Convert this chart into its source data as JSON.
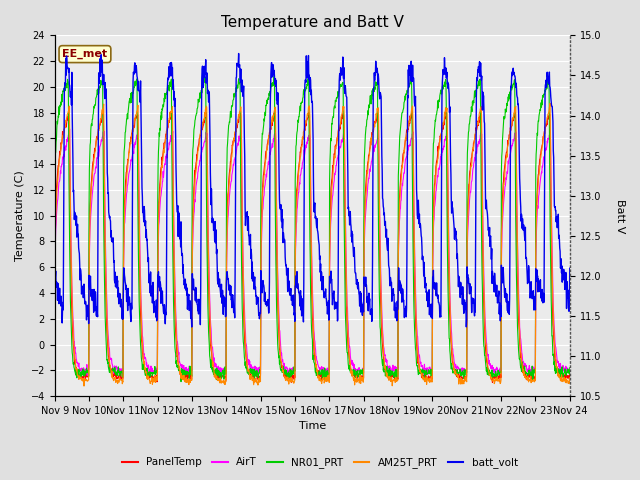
{
  "title": "Temperature and Batt V",
  "ylabel_left": "Temperature (C)",
  "ylabel_right": "Batt V",
  "xlabel": "Time",
  "annotation_text": "EE_met",
  "annotation_color": "#8B0000",
  "annotation_bg": "#FFFFD0",
  "annotation_border": "#8B6914",
  "ylim_left": [
    -4,
    24
  ],
  "ylim_right": [
    10.5,
    15.0
  ],
  "yticks_left": [
    -4,
    -2,
    0,
    2,
    4,
    6,
    8,
    10,
    12,
    14,
    16,
    18,
    20,
    22,
    24
  ],
  "yticks_right": [
    10.5,
    11.0,
    11.5,
    12.0,
    12.5,
    13.0,
    13.5,
    14.0,
    14.5,
    15.0
  ],
  "xtick_labels": [
    "Nov 9",
    "Nov 10",
    "Nov 11",
    "Nov 12",
    "Nov 13",
    "Nov 14",
    "Nov 15",
    "Nov 16",
    "Nov 17",
    "Nov 18",
    "Nov 19",
    "Nov 20",
    "Nov 21",
    "Nov 22",
    "Nov 23",
    "Nov 24"
  ],
  "legend": [
    {
      "label": "PanelTemp",
      "color": "#FF0000"
    },
    {
      "label": "AirT",
      "color": "#FF00FF"
    },
    {
      "label": "NR01_PRT",
      "color": "#00CC00"
    },
    {
      "label": "AM25T_PRT",
      "color": "#FF8800"
    },
    {
      "label": "batt_volt",
      "color": "#0000EE"
    }
  ],
  "bg_color": "#E0E0E0",
  "plot_bg": "#EBEBEB",
  "grid_color": "#FFFFFF",
  "title_fontsize": 11,
  "axis_fontsize": 8,
  "tick_fontsize": 7,
  "lw_temp": 0.8,
  "lw_batt": 1.0
}
